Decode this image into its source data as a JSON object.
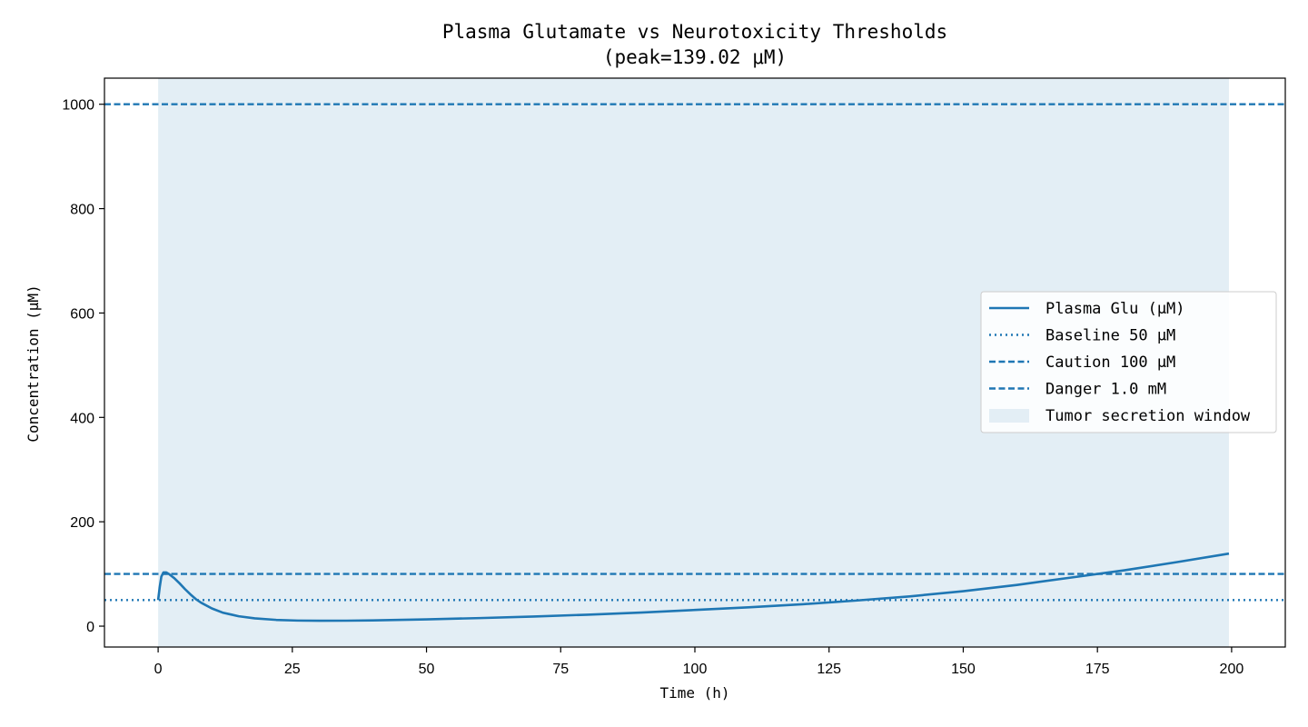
{
  "chart_data": {
    "type": "line",
    "title": "Plasma Glutamate vs Neurotoxicity Thresholds",
    "subtitle": "(peak=139.02 μM)",
    "xlabel": "Time (h)",
    "ylabel": "Concentration (μM)",
    "xlim": [
      -10,
      210
    ],
    "ylim": [
      -40,
      1050
    ],
    "xticks": [
      0,
      25,
      50,
      75,
      100,
      125,
      150,
      175,
      200
    ],
    "yticks": [
      0,
      200,
      400,
      600,
      800,
      1000
    ],
    "grid": false,
    "legend_position": "center-right",
    "shaded_region": {
      "name": "Tumor secretion window",
      "x": [
        0,
        199.5
      ],
      "color": "#e3eef5"
    },
    "series": [
      {
        "name": "Plasma Glu (μM)",
        "color": "#1f77b4",
        "style": "solid",
        "x": [
          0,
          0.3,
          0.6,
          1.0,
          1.5,
          2.0,
          3.0,
          4.0,
          5.0,
          6.0,
          7.0,
          8.0,
          10,
          12,
          15,
          18,
          22,
          26,
          30,
          35,
          40,
          50,
          60,
          70,
          80,
          90,
          100,
          110,
          120,
          130,
          140,
          150,
          160,
          170,
          180,
          190,
          199.5
        ],
        "y": [
          50,
          75,
          95,
          103,
          103,
          100,
          92,
          82,
          71,
          61,
          52,
          45,
          34,
          26,
          19,
          15,
          12,
          10.7,
          10.3,
          10.5,
          11,
          13,
          15.5,
          18.5,
          22,
          26,
          31,
          36,
          42,
          49,
          57,
          67,
          79,
          93,
          107,
          123,
          139.02
        ]
      }
    ],
    "thresholds": [
      {
        "name": "Baseline 50 μM",
        "value": 50,
        "style": "dotted",
        "color": "#1f77b4"
      },
      {
        "name": "Caution 100 μM",
        "value": 100,
        "style": "dashed",
        "color": "#1f77b4"
      },
      {
        "name": "Danger 1.0 mM",
        "value": 1000,
        "style": "dashed",
        "color": "#1f77b4"
      }
    ]
  }
}
